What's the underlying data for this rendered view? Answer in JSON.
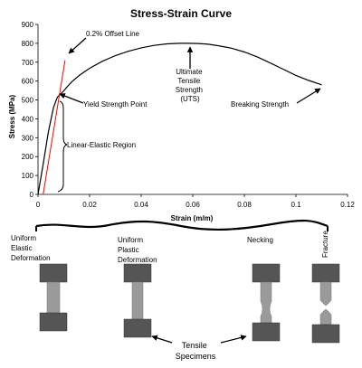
{
  "chart_data": {
    "type": "line",
    "title": "Stress-Strain Curve",
    "xlabel": "Strain (m/m)",
    "ylabel": "Stress (MPa)",
    "xlim": [
      0,
      0.12
    ],
    "ylim": [
      0,
      900
    ],
    "x_ticks": [
      "0",
      "0.02",
      "0.04",
      "0.06",
      "0.08",
      "0.1",
      "0.12"
    ],
    "y_ticks": [
      "0",
      "100",
      "200",
      "300",
      "400",
      "500",
      "600",
      "700",
      "800",
      "900"
    ],
    "grid": false,
    "series": [
      {
        "color": "#000000",
        "x": [
          0,
          0.002,
          0.004,
          0.006,
          0.0075,
          0.009,
          0.01,
          0.011,
          0.013,
          0.016,
          0.02,
          0.025,
          0.03,
          0.035,
          0.04,
          0.045,
          0.05,
          0.055,
          0.058,
          0.062,
          0.066,
          0.07,
          0.075,
          0.08,
          0.085,
          0.09,
          0.095,
          0.1,
          0.105,
          0.11
        ],
        "y": [
          0,
          160,
          330,
          460,
          515,
          535,
          548,
          565,
          595,
          630,
          668,
          705,
          735,
          758,
          776,
          789,
          797,
          800,
          800,
          799,
          795,
          787,
          774,
          754,
          728,
          696,
          663,
          630,
          603,
          580
        ]
      },
      {
        "color": "#ff0000",
        "x": [
          0.002,
          0.0105
        ],
        "y": [
          0,
          710
        ]
      }
    ],
    "annotations": [
      {
        "label": "0.2% Offset Line",
        "x": 0.0105,
        "y": 710
      },
      {
        "label": "Yield Strength Point",
        "x": 0.009,
        "y": 520
      },
      {
        "label": "Linear-Elastic Region",
        "x": 0.005,
        "y": 280
      },
      {
        "label": "Ultimate Tensile Strength (UTS)",
        "x": 0.058,
        "y": 800
      },
      {
        "label": "Breaking Strength",
        "x": 0.11,
        "y": 580
      }
    ]
  },
  "stages": [
    {
      "label": "Uniform Elastic Deformation"
    },
    {
      "label": "Uniform Plastic Deformation"
    },
    {
      "label": "Necking"
    },
    {
      "label": "Fracture"
    }
  ],
  "specimens_label": "Tensile Specimens",
  "colors": {
    "specimen_dark": "#555555",
    "specimen_light": "#9a9a9a",
    "curve": "#000000",
    "offset_line": "#ff0000"
  }
}
